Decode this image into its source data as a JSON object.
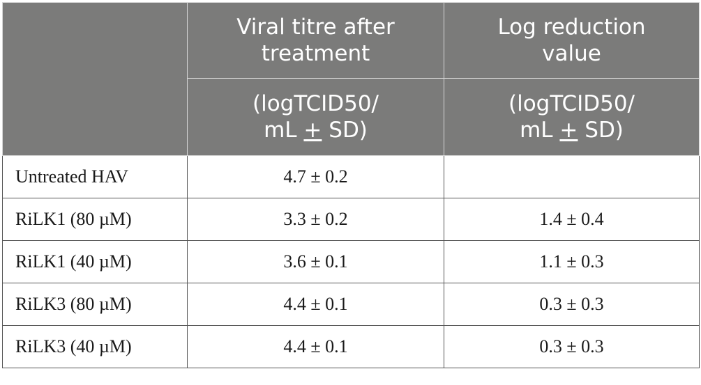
{
  "table": {
    "header": {
      "col2_title": [
        "Viral titre after",
        "treatment"
      ],
      "col3_title": [
        "Log reduction",
        "value"
      ],
      "col2_unit": [
        "(logTCID50/",
        "mL",
        "+",
        " SD)"
      ],
      "col3_unit": [
        "(logTCID50/",
        "mL",
        "+",
        " SD)"
      ]
    },
    "rows": [
      {
        "label": "Untreated HAV",
        "titre": "4.7 ± 0.2",
        "reduction": ""
      },
      {
        "label": "RiLK1 (80 µM)",
        "titre": "3.3 ± 0.2",
        "reduction": "1.4 ± 0.4"
      },
      {
        "label": "RiLK1 (40 µM)",
        "titre": "3.6 ± 0.1",
        "reduction": "1.1 ± 0.3"
      },
      {
        "label": "RiLK3 (80 µM)",
        "titre": "4.4 ± 0.1",
        "reduction": "0.3 ± 0.3"
      },
      {
        "label": "RiLK3 (40 µM)",
        "titre": "4.4 ± 0.1",
        "reduction": "0.3 ± 0.3"
      }
    ]
  },
  "colors": {
    "header_bg": "#7b7b7a",
    "header_text": "#ffffff",
    "body_text": "#1a1a1a",
    "border": "#555555"
  }
}
